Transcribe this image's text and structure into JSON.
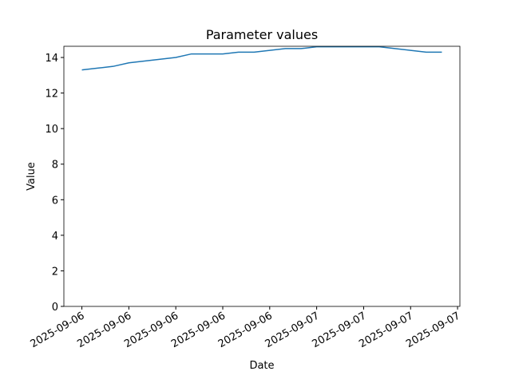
{
  "chart_data": {
    "type": "line",
    "title": "Parameter values",
    "x_label": "Date",
    "y_label": "Value",
    "series": [
      {
        "color": "#1f77b4",
        "values": [
          13.3,
          13.4,
          13.5,
          13.7,
          13.8,
          13.9,
          14.0,
          14.2,
          14.2,
          14.2,
          14.3,
          14.3,
          14.4,
          14.5,
          14.5,
          14.6,
          14.6,
          14.6,
          14.6,
          14.6,
          14.5,
          14.4,
          14.3,
          14.3
        ]
      }
    ],
    "xlim": [
      -1.15,
      24.15
    ],
    "xticks": [
      {
        "value": 0,
        "label": "2025-09-06"
      },
      {
        "value": 3,
        "label": "2025-09-06"
      },
      {
        "value": 6,
        "label": "2025-09-06"
      },
      {
        "value": 9,
        "label": "2025-09-06"
      },
      {
        "value": 12,
        "label": "2025-09-06"
      },
      {
        "value": 15,
        "label": "2025-09-07"
      },
      {
        "value": 18,
        "label": "2025-09-07"
      },
      {
        "value": 21,
        "label": "2025-09-07"
      },
      {
        "value": 24,
        "label": "2025-09-07"
      }
    ],
    "ylim": [
      0,
      14.63
    ],
    "yticks": [
      0,
      2,
      4,
      6,
      8,
      10,
      12,
      14
    ],
    "grid": false
  }
}
